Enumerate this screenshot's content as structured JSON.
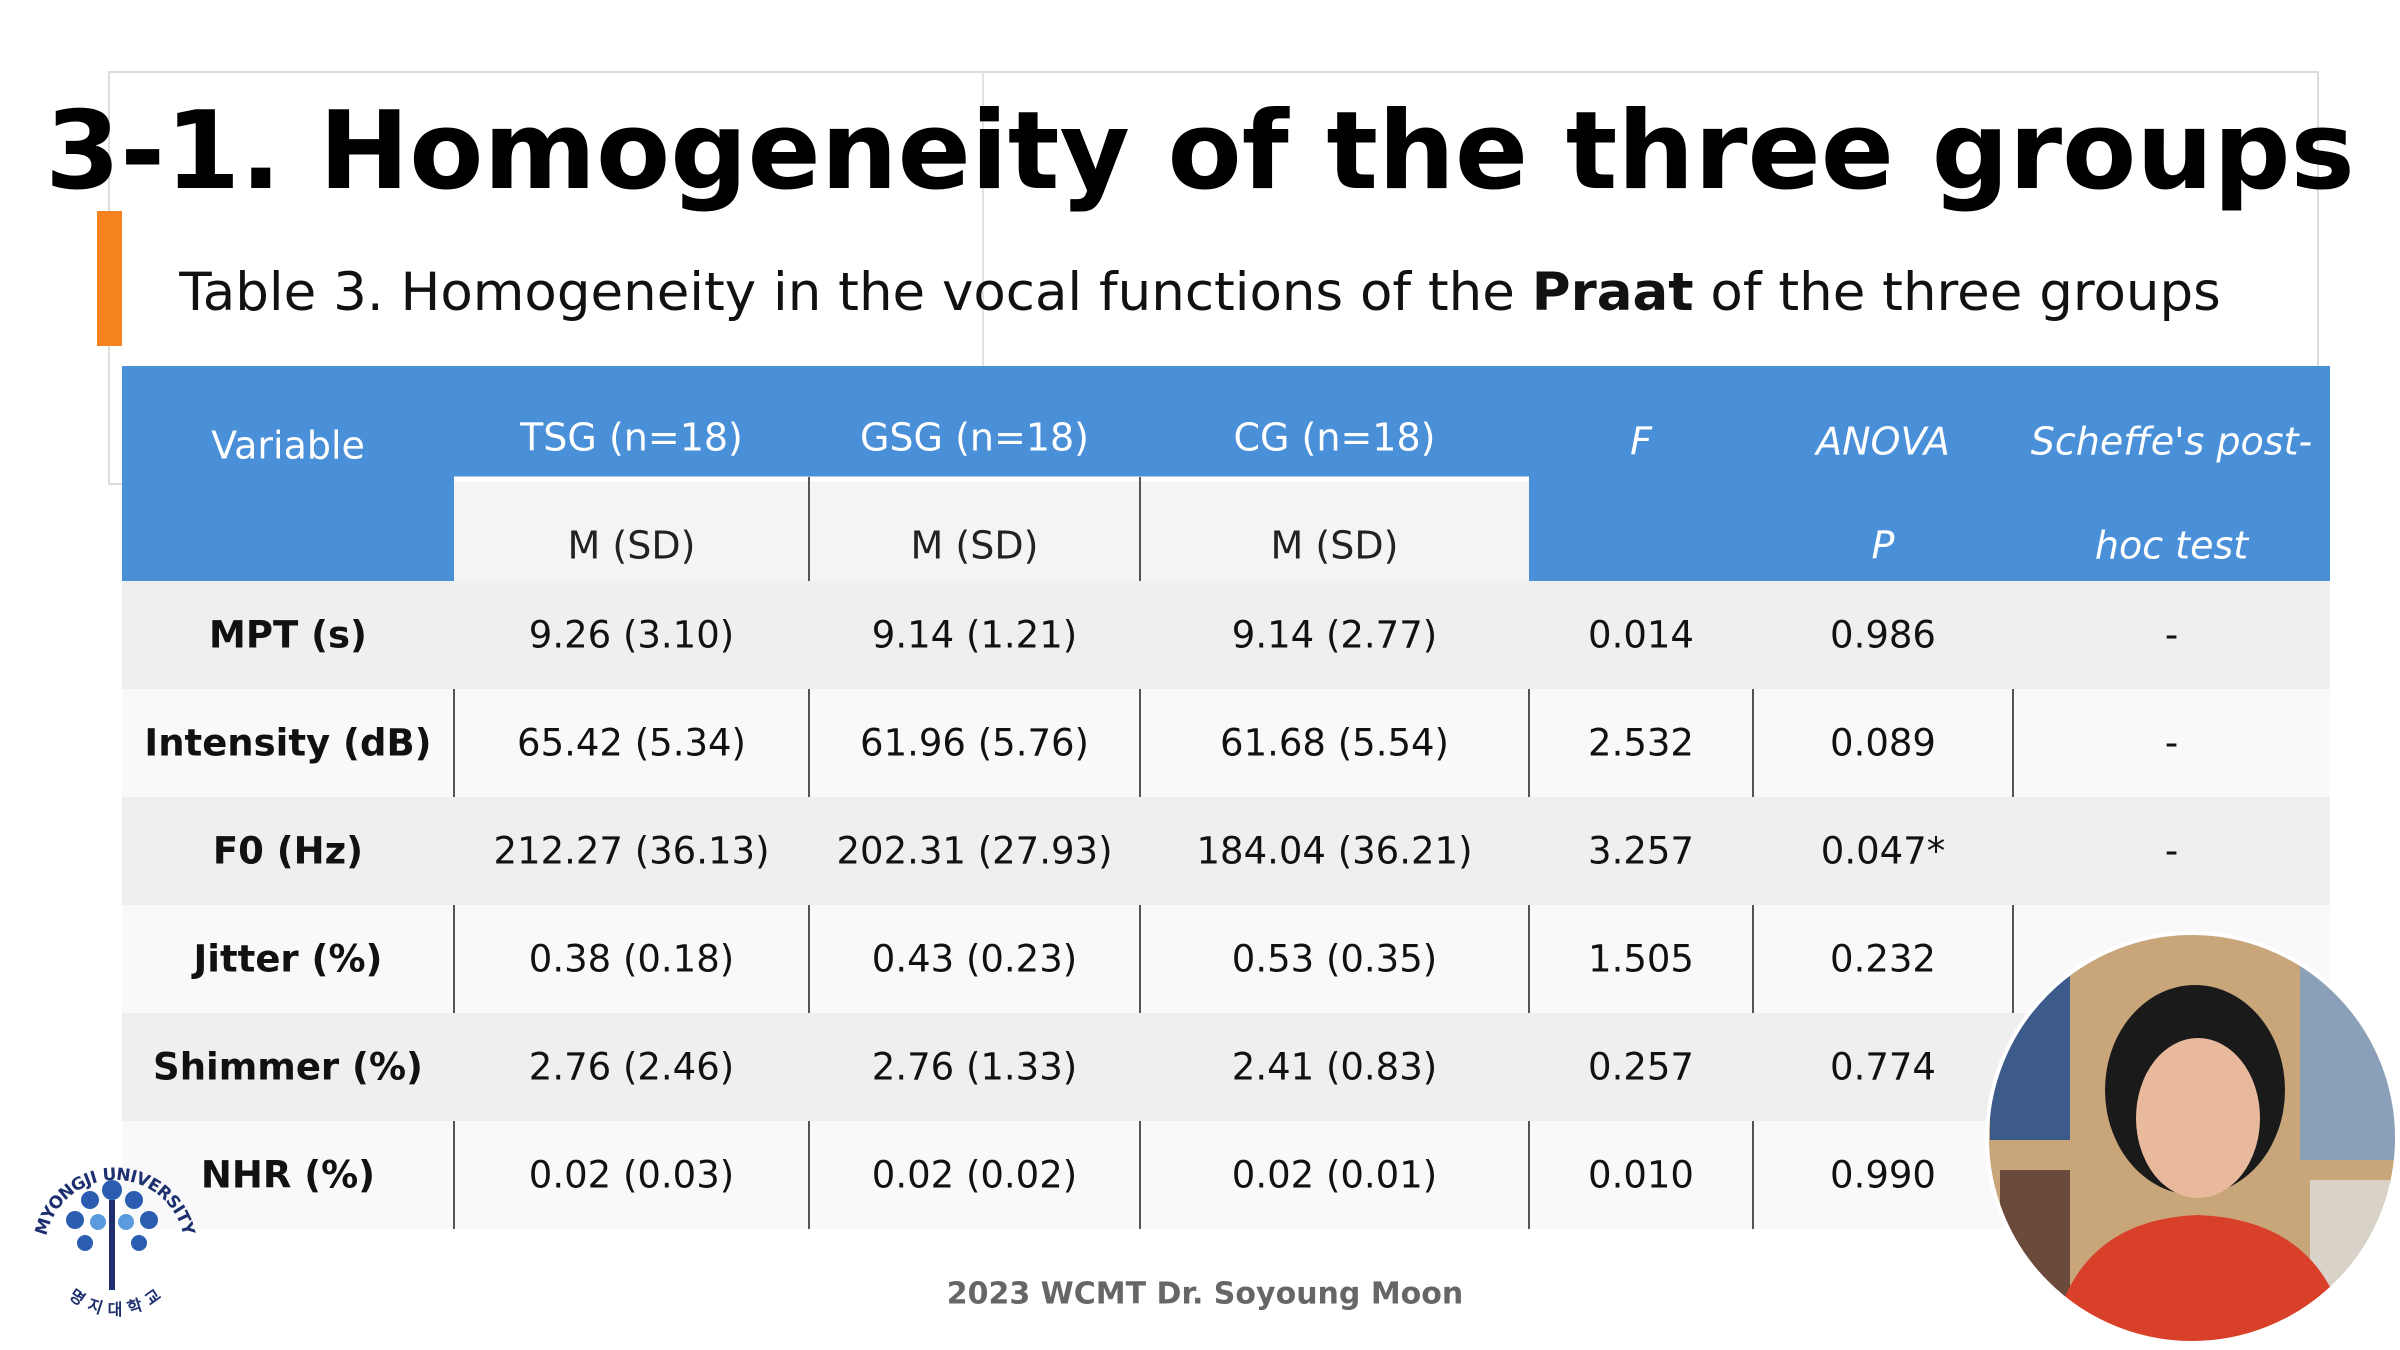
{
  "title": "3-1. Homogeneity of the three groups",
  "subtitle": {
    "before": "Table 3. Homogeneity in the vocal functions of the ",
    "bold": "Praat",
    "after": " of the three groups"
  },
  "table": {
    "header": [
      "Variable",
      "TSG (n=18)",
      "GSG (n=18)",
      "CG (n=18)",
      "F",
      "ANOVA",
      "Scheffe's post-"
    ],
    "header2": [
      "M (SD)",
      "M (SD)",
      "M (SD)",
      "P",
      "hoc test"
    ],
    "rows": [
      [
        "MPT (s)",
        "9.26 (3.10)",
        "9.14 (1.21)",
        "9.14 (2.77)",
        "0.014",
        "0.986",
        "-"
      ],
      [
        "Intensity (dB)",
        "65.42 (5.34)",
        "61.96 (5.76)",
        "61.68 (5.54)",
        "2.532",
        "0.089",
        "-"
      ],
      [
        "F0 (Hz)",
        "212.27 (36.13)",
        "202.31 (27.93)",
        "184.04 (36.21)",
        "3.257",
        "0.047*",
        "-"
      ],
      [
        "Jitter (%)",
        "0.38 (0.18)",
        "0.43 (0.23)",
        "0.53 (0.35)",
        "1.505",
        "0.232"
      ],
      [
        "Shimmer (%)",
        "2.76 (2.46)",
        "2.76 (1.33)",
        "2.41 (0.83)",
        "0.257",
        "0.774"
      ],
      [
        "NHR (%)",
        "0.02 (0.03)",
        "0.02 (0.02)",
        "0.02 (0.01)",
        "0.010",
        "0.990"
      ]
    ]
  },
  "footer": "2023 WCMT Dr. Soyoung Moon",
  "logo": {
    "name": "MYONGJI UNIVERSITY",
    "korean": "명 지 대 학 교"
  }
}
